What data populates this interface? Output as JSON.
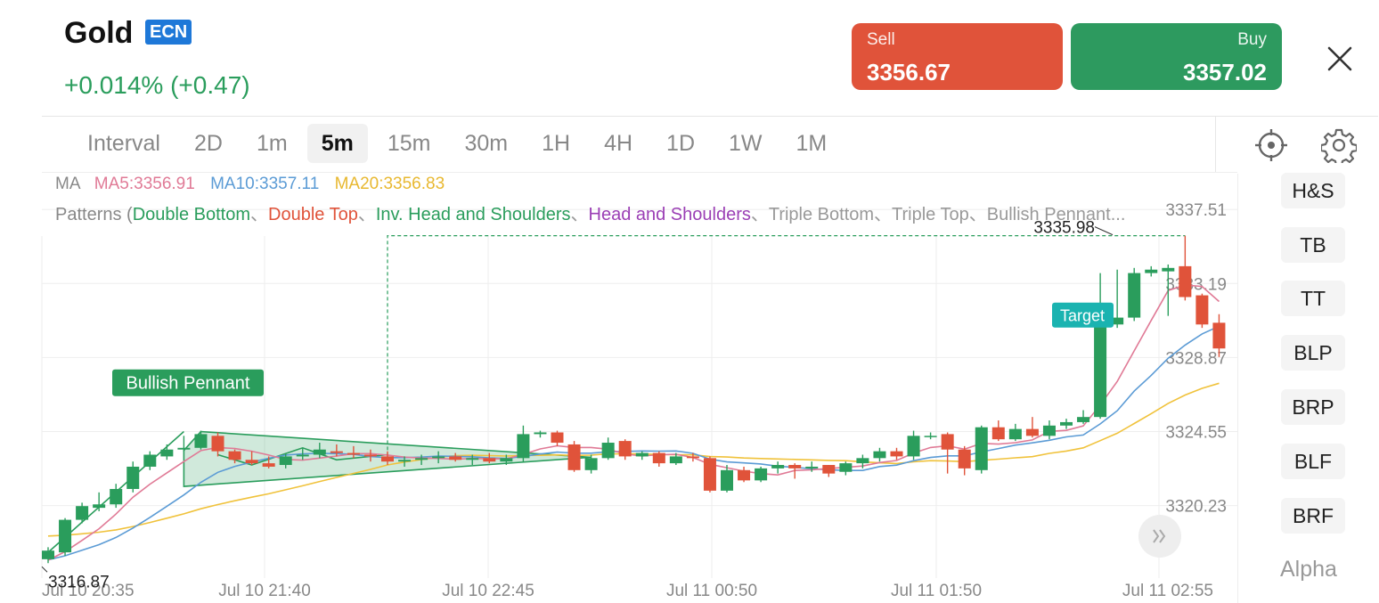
{
  "header": {
    "symbol": "Gold",
    "badge": "ECN",
    "change": "+0.014% (+0.47)",
    "sell_label": "Sell",
    "sell_price": "3356.67",
    "buy_label": "Buy",
    "buy_price": "3357.02",
    "close_icon": "close-icon"
  },
  "toolbar": {
    "intervals": [
      "Interval",
      "2D",
      "1m",
      "5m",
      "15m",
      "30m",
      "1H",
      "4H",
      "1D",
      "1W",
      "1M"
    ],
    "selected": "5m",
    "icons": [
      "crosshair-target-icon",
      "gear-icon"
    ]
  },
  "indicators": {
    "ma_label": "MA",
    "ma5": "MA5:3356.91",
    "ma10": "MA10:3357.11",
    "ma20": "MA20:3356.83",
    "patterns_prefix": "Patterns (",
    "patterns": [
      {
        "text": "Double Bottom",
        "color": "#2a9d5c"
      },
      {
        "text": "、",
        "color": "#999999"
      },
      {
        "text": "Double Top",
        "color": "#e0533a"
      },
      {
        "text": "、",
        "color": "#999999"
      },
      {
        "text": "Inv. Head and Shoulders",
        "color": "#2a9d5c"
      },
      {
        "text": "、",
        "color": "#999999"
      },
      {
        "text": "Head and Shoulders",
        "color": "#9b3fb5"
      },
      {
        "text": "、Triple Bottom、Triple Top、Bullish Pennant...",
        "color": "#999999"
      }
    ]
  },
  "side_panel": {
    "buttons": [
      "H&S",
      "TB",
      "TT",
      "BLP",
      "BRP",
      "BLF",
      "BRF"
    ],
    "footer": "Alpha"
  },
  "chart_data": {
    "type": "candlestick",
    "y_ticks": [
      "3337.51",
      "3333.19",
      "3328.87",
      "3324.55",
      "3320.23"
    ],
    "x_ticks": [
      "Jul 10 20:35",
      "Jul 10 21:40",
      "Jul 10 22:45",
      "Jul 11 00:50",
      "Jul 11 01:50",
      "Jul 11 02:55"
    ],
    "ylim": [
      3316.0,
      3339.6
    ],
    "high_label": "3335.98",
    "low_label": "3316.87",
    "pattern_label": "Bullish Pennant",
    "target_label": "Target",
    "colors": {
      "up": "#2a9d5c",
      "down": "#e0533a",
      "ma5": "#e07a96",
      "ma10": "#5b9bd5",
      "ma20": "#f0c23b"
    },
    "candles": [
      {
        "o": 3317.1,
        "h": 3317.8,
        "l": 3316.87,
        "c": 3317.6
      },
      {
        "o": 3317.5,
        "h": 3319.5,
        "l": 3317.3,
        "c": 3319.4
      },
      {
        "o": 3319.4,
        "h": 3320.4,
        "l": 3319.2,
        "c": 3320.2
      },
      {
        "o": 3320.1,
        "h": 3321.0,
        "l": 3319.9,
        "c": 3320.3
      },
      {
        "o": 3320.3,
        "h": 3321.5,
        "l": 3320.1,
        "c": 3321.2
      },
      {
        "o": 3321.2,
        "h": 3322.8,
        "l": 3321.0,
        "c": 3322.5
      },
      {
        "o": 3322.5,
        "h": 3323.4,
        "l": 3322.3,
        "c": 3323.2
      },
      {
        "o": 3323.1,
        "h": 3323.8,
        "l": 3322.9,
        "c": 3323.5
      },
      {
        "o": 3323.5,
        "h": 3324.3,
        "l": 3323.4,
        "c": 3323.6
      },
      {
        "o": 3323.6,
        "h": 3324.6,
        "l": 3323.5,
        "c": 3324.4
      },
      {
        "o": 3324.3,
        "h": 3324.5,
        "l": 3323.1,
        "c": 3323.4
      },
      {
        "o": 3323.4,
        "h": 3323.5,
        "l": 3322.7,
        "c": 3322.9
      },
      {
        "o": 3322.9,
        "h": 3323.4,
        "l": 3322.6,
        "c": 3322.7
      },
      {
        "o": 3322.7,
        "h": 3323.1,
        "l": 3322.4,
        "c": 3322.5
      },
      {
        "o": 3322.6,
        "h": 3323.3,
        "l": 3322.4,
        "c": 3323.1
      },
      {
        "o": 3323.1,
        "h": 3323.6,
        "l": 3322.9,
        "c": 3323.2
      },
      {
        "o": 3323.2,
        "h": 3323.9,
        "l": 3323.0,
        "c": 3323.5
      },
      {
        "o": 3323.4,
        "h": 3323.8,
        "l": 3323.1,
        "c": 3323.3
      },
      {
        "o": 3323.3,
        "h": 3323.7,
        "l": 3323.0,
        "c": 3323.2
      },
      {
        "o": 3323.2,
        "h": 3323.5,
        "l": 3322.8,
        "c": 3323.1
      },
      {
        "o": 3323.1,
        "h": 3323.4,
        "l": 3322.6,
        "c": 3322.8
      },
      {
        "o": 3322.8,
        "h": 3323.1,
        "l": 3322.5,
        "c": 3322.9
      },
      {
        "o": 3322.9,
        "h": 3323.2,
        "l": 3322.6,
        "c": 3323.0
      },
      {
        "o": 3323.0,
        "h": 3323.4,
        "l": 3322.7,
        "c": 3323.1
      },
      {
        "o": 3323.1,
        "h": 3323.3,
        "l": 3322.8,
        "c": 3322.9
      },
      {
        "o": 3322.9,
        "h": 3323.2,
        "l": 3322.6,
        "c": 3323.0
      },
      {
        "o": 3323.0,
        "h": 3323.3,
        "l": 3322.7,
        "c": 3322.8
      },
      {
        "o": 3322.8,
        "h": 3323.2,
        "l": 3322.6,
        "c": 3323.0
      },
      {
        "o": 3323.0,
        "h": 3324.9,
        "l": 3322.8,
        "c": 3324.4
      },
      {
        "o": 3324.4,
        "h": 3324.6,
        "l": 3324.2,
        "c": 3324.5
      },
      {
        "o": 3324.5,
        "h": 3324.6,
        "l": 3323.7,
        "c": 3323.9
      },
      {
        "o": 3323.8,
        "h": 3324.0,
        "l": 3322.2,
        "c": 3322.3
      },
      {
        "o": 3322.3,
        "h": 3323.2,
        "l": 3322.1,
        "c": 3323.0
      },
      {
        "o": 3323.0,
        "h": 3324.2,
        "l": 3322.9,
        "c": 3323.9
      },
      {
        "o": 3324.0,
        "h": 3324.1,
        "l": 3322.9,
        "c": 3323.1
      },
      {
        "o": 3323.1,
        "h": 3323.4,
        "l": 3322.9,
        "c": 3323.3
      },
      {
        "o": 3323.3,
        "h": 3323.4,
        "l": 3322.5,
        "c": 3322.7
      },
      {
        "o": 3322.7,
        "h": 3323.3,
        "l": 3322.6,
        "c": 3323.1
      },
      {
        "o": 3323.1,
        "h": 3323.3,
        "l": 3322.8,
        "c": 3323.0
      },
      {
        "o": 3323.0,
        "h": 3323.1,
        "l": 3321.0,
        "c": 3321.1
      },
      {
        "o": 3321.1,
        "h": 3322.6,
        "l": 3321.0,
        "c": 3322.3
      },
      {
        "o": 3322.3,
        "h": 3322.5,
        "l": 3321.6,
        "c": 3321.7
      },
      {
        "o": 3321.7,
        "h": 3322.5,
        "l": 3321.6,
        "c": 3322.4
      },
      {
        "o": 3322.4,
        "h": 3322.8,
        "l": 3322.1,
        "c": 3322.6
      },
      {
        "o": 3322.6,
        "h": 3322.7,
        "l": 3321.8,
        "c": 3322.4
      },
      {
        "o": 3322.4,
        "h": 3322.8,
        "l": 3322.2,
        "c": 3322.5
      },
      {
        "o": 3322.6,
        "h": 3322.6,
        "l": 3321.9,
        "c": 3322.1
      },
      {
        "o": 3322.2,
        "h": 3322.8,
        "l": 3322.0,
        "c": 3322.7
      },
      {
        "o": 3322.7,
        "h": 3323.2,
        "l": 3322.4,
        "c": 3323.0
      },
      {
        "o": 3323.0,
        "h": 3323.6,
        "l": 3322.8,
        "c": 3323.4
      },
      {
        "o": 3323.4,
        "h": 3323.6,
        "l": 3322.9,
        "c": 3323.1
      },
      {
        "o": 3323.1,
        "h": 3324.6,
        "l": 3322.9,
        "c": 3324.3
      },
      {
        "o": 3324.3,
        "h": 3324.5,
        "l": 3324.1,
        "c": 3324.3
      },
      {
        "o": 3324.4,
        "h": 3324.5,
        "l": 3322.1,
        "c": 3323.5
      },
      {
        "o": 3323.5,
        "h": 3323.7,
        "l": 3322.0,
        "c": 3322.4
      },
      {
        "o": 3322.3,
        "h": 3324.9,
        "l": 3322.1,
        "c": 3324.8
      },
      {
        "o": 3324.8,
        "h": 3325.2,
        "l": 3324.0,
        "c": 3324.1
      },
      {
        "o": 3324.1,
        "h": 3325.0,
        "l": 3324.0,
        "c": 3324.7
      },
      {
        "o": 3324.7,
        "h": 3325.4,
        "l": 3324.2,
        "c": 3324.3
      },
      {
        "o": 3324.3,
        "h": 3325.2,
        "l": 3324.1,
        "c": 3324.9
      },
      {
        "o": 3324.9,
        "h": 3325.3,
        "l": 3324.7,
        "c": 3325.1
      },
      {
        "o": 3325.1,
        "h": 3325.8,
        "l": 3325.0,
        "c": 3325.4
      },
      {
        "o": 3325.4,
        "h": 3333.8,
        "l": 3325.3,
        "c": 3330.8
      },
      {
        "o": 3330.8,
        "h": 3334.0,
        "l": 3330.6,
        "c": 3331.2
      },
      {
        "o": 3331.2,
        "h": 3334.1,
        "l": 3331.0,
        "c": 3333.8
      },
      {
        "o": 3333.8,
        "h": 3334.2,
        "l": 3333.6,
        "c": 3334.0
      },
      {
        "o": 3333.9,
        "h": 3334.3,
        "l": 3331.3,
        "c": 3334.1
      },
      {
        "o": 3334.2,
        "h": 3335.98,
        "l": 3332.2,
        "c": 3332.4
      },
      {
        "o": 3332.5,
        "h": 3332.6,
        "l": 3330.6,
        "c": 3330.8
      },
      {
        "o": 3330.9,
        "h": 3331.4,
        "l": 3328.9,
        "c": 3329.4
      }
    ]
  }
}
